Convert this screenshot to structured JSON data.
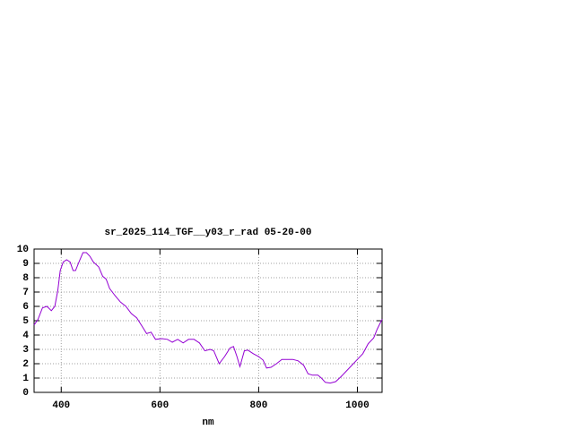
{
  "chart_data": {
    "type": "line",
    "title": "sr_2025_114_TGF__y03_r_rad 05-20-00",
    "x_label": "nm",
    "x": [
      345,
      353,
      362,
      371,
      380,
      387,
      393,
      398,
      404,
      411,
      418,
      424,
      429,
      436,
      444,
      451,
      458,
      465,
      476,
      484,
      491,
      498,
      509,
      520,
      531,
      542,
      553,
      564,
      573,
      582,
      591,
      604,
      615,
      625,
      636,
      647,
      658,
      669,
      680,
      691,
      702,
      709,
      720,
      731,
      742,
      749,
      756,
      762,
      771,
      778,
      789,
      800,
      809,
      816,
      825,
      836,
      847,
      858,
      869,
      880,
      891,
      900,
      909,
      920,
      927,
      935,
      945,
      956,
      967,
      978,
      989,
      1000,
      1011,
      1022,
      1033,
      1040,
      1050
    ],
    "series": [
      {
        "color": "#9400d3",
        "values": [
          4.7,
          5.1,
          5.9,
          6.0,
          5.7,
          6.0,
          7.1,
          8.5,
          9.1,
          9.25,
          9.1,
          8.5,
          8.5,
          9.1,
          9.75,
          9.75,
          9.5,
          9.1,
          8.75,
          8.1,
          7.9,
          7.25,
          6.75,
          6.3,
          6.0,
          5.5,
          5.2,
          4.6,
          4.1,
          4.2,
          3.7,
          3.75,
          3.7,
          3.5,
          3.7,
          3.45,
          3.7,
          3.7,
          3.45,
          2.9,
          3.0,
          2.9,
          2.0,
          2.5,
          3.1,
          3.2,
          2.5,
          1.8,
          2.9,
          2.95,
          2.7,
          2.5,
          2.25,
          1.7,
          1.75,
          2.0,
          2.3,
          2.3,
          2.3,
          2.2,
          1.9,
          1.3,
          1.2,
          1.2,
          1.0,
          0.7,
          0.65,
          0.75,
          1.1,
          1.5,
          1.9,
          2.3,
          2.7,
          3.4,
          3.8,
          4.4,
          5.1
        ]
      }
    ],
    "xlim": [
      345,
      1050
    ],
    "xticks": [
      400,
      600,
      800,
      1000
    ],
    "ylim": [
      0,
      10
    ],
    "yticks": [
      0,
      1,
      2,
      3,
      4,
      5,
      6,
      7,
      8,
      9,
      10
    ],
    "grid": true
  }
}
